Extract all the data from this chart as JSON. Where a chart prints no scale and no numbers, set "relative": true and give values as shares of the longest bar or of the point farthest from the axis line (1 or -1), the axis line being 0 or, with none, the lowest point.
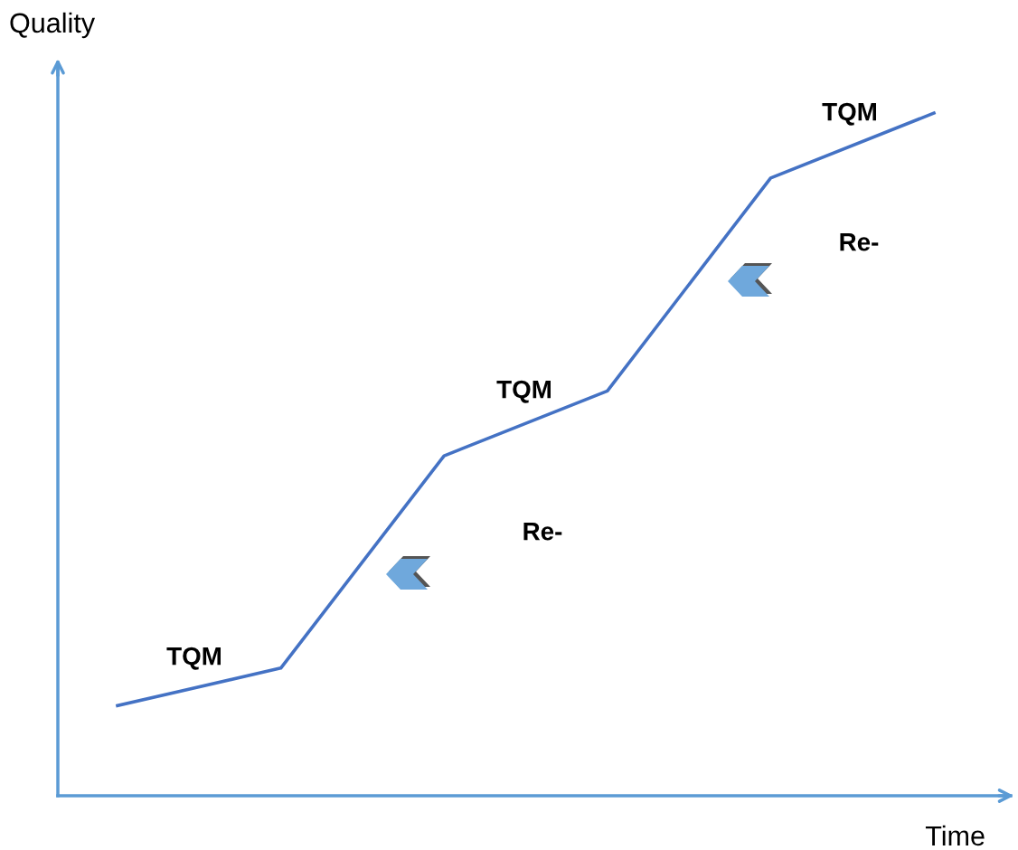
{
  "chart_data": {
    "type": "line",
    "relative": true,
    "xlabel": "Time",
    "ylabel": "Quality",
    "categories": [
      null,
      null,
      null,
      null,
      null,
      null
    ],
    "legend": false,
    "marker": "none",
    "line_style": "solid",
    "series": [
      {
        "color": "#4472c4",
        "values": [
          0.132,
          0.187,
          0.498,
          0.593,
          0.905,
          1.0
        ]
      }
    ],
    "annotations": [
      "TQM",
      "Re-",
      "TQM",
      "Re-",
      "TQM"
    ]
  }
}
